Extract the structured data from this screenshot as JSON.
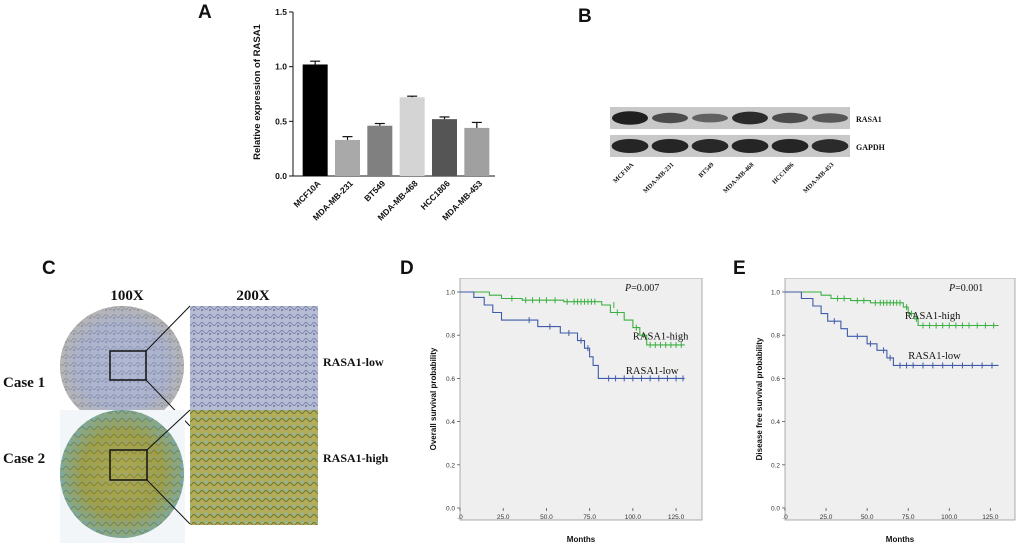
{
  "panels": {
    "a": {
      "letter": "A"
    },
    "b": {
      "letter": "B"
    },
    "c": {
      "letter": "C"
    },
    "d": {
      "letter": "D"
    },
    "e": {
      "letter": "E"
    }
  },
  "ihc": {
    "col_labels": [
      "100X",
      "200X"
    ],
    "row_labels": [
      "Case 1",
      "Case 2"
    ],
    "expression_labels": [
      "RASA1-low",
      "RASA1-high"
    ]
  },
  "blot": {
    "band_labels": [
      "RASA1",
      "GAPDH"
    ],
    "lanes": [
      "MCF10A",
      "MDA-MB-231",
      "BT549",
      "MDA-MB-468",
      "HCC1806",
      "MDA-MB-453"
    ],
    "rasa1_intensity": [
      0.95,
      0.55,
      0.35,
      0.85,
      0.55,
      0.45
    ],
    "gapdh_intensity": [
      0.9,
      0.9,
      0.88,
      0.9,
      0.9,
      0.85
    ]
  },
  "chart_data": [
    {
      "type": "bar",
      "panel": "A",
      "categories": [
        "MCF10A",
        "MDA-MB-231",
        "BT549",
        "MDA-MB-468",
        "HCC1806",
        "MDA-MB-453"
      ],
      "values": [
        1.02,
        0.33,
        0.46,
        0.72,
        0.52,
        0.44
      ],
      "errors": [
        0.03,
        0.03,
        0.02,
        0.01,
        0.02,
        0.05
      ],
      "colors": [
        "#000000",
        "#a9a9a9",
        "#808080",
        "#d4d4d4",
        "#555555",
        "#a0a0a0"
      ],
      "ylabel": "Relative expression of RASA1",
      "ylim": [
        0,
        1.5
      ],
      "yticks": [
        "0.0",
        "0.5",
        "1.0",
        "1.5"
      ]
    },
    {
      "type": "line",
      "panel": "D",
      "title": "",
      "xlabel": "Months",
      "ylabel": "Overall survival probability",
      "annotation_p": "=0.007",
      "annotation_p_letter": "P",
      "xlim": [
        0,
        140
      ],
      "ylim": [
        0,
        1.0
      ],
      "xticks": [
        ".0",
        "25.0",
        "50.0",
        "75.0",
        "100.0",
        "125.0"
      ],
      "yticks": [
        "0.0",
        "0.2",
        "0.4",
        "0.6",
        "0.8",
        "1.0"
      ],
      "series": [
        {
          "name": "RASA1-high",
          "color": "#3cb043",
          "steps": [
            [
              0,
              1.0
            ],
            [
              17,
              1.0
            ],
            [
              17,
              0.985
            ],
            [
              24,
              0.985
            ],
            [
              24,
              0.97
            ],
            [
              36,
              0.97
            ],
            [
              36,
              0.962
            ],
            [
              60,
              0.962
            ],
            [
              60,
              0.955
            ],
            [
              82,
              0.955
            ],
            [
              82,
              0.94
            ],
            [
              87,
              0.94
            ],
            [
              87,
              0.905
            ],
            [
              95,
              0.905
            ],
            [
              95,
              0.87
            ],
            [
              100,
              0.87
            ],
            [
              100,
              0.835
            ],
            [
              104,
              0.835
            ],
            [
              104,
              0.8
            ],
            [
              108,
              0.8
            ],
            [
              108,
              0.755
            ],
            [
              130,
              0.755
            ]
          ],
          "censors": [
            [
              30,
              0.97
            ],
            [
              38,
              0.962
            ],
            [
              42,
              0.962
            ],
            [
              46,
              0.962
            ],
            [
              50,
              0.962
            ],
            [
              55,
              0.962
            ],
            [
              62,
              0.955
            ],
            [
              66,
              0.955
            ],
            [
              68,
              0.955
            ],
            [
              70,
              0.955
            ],
            [
              72,
              0.955
            ],
            [
              74,
              0.955
            ],
            [
              76,
              0.955
            ],
            [
              78,
              0.955
            ],
            [
              89,
              0.94
            ],
            [
              91,
              0.905
            ],
            [
              102,
              0.835
            ],
            [
              106,
              0.8
            ],
            [
              110,
              0.755
            ],
            [
              113,
              0.755
            ],
            [
              116,
              0.755
            ],
            [
              119,
              0.755
            ],
            [
              122,
              0.755
            ],
            [
              125,
              0.755
            ],
            [
              128,
              0.755
            ]
          ]
        },
        {
          "name": "RASA1-low",
          "color": "#3f5ba9",
          "steps": [
            [
              0,
              1.0
            ],
            [
              8,
              1.0
            ],
            [
              8,
              0.975
            ],
            [
              14,
              0.975
            ],
            [
              14,
              0.94
            ],
            [
              19,
              0.94
            ],
            [
              19,
              0.905
            ],
            [
              24,
              0.905
            ],
            [
              24,
              0.87
            ],
            [
              45,
              0.87
            ],
            [
              45,
              0.84
            ],
            [
              58,
              0.84
            ],
            [
              58,
              0.81
            ],
            [
              68,
              0.81
            ],
            [
              68,
              0.775
            ],
            [
              72,
              0.775
            ],
            [
              72,
              0.74
            ],
            [
              75,
              0.74
            ],
            [
              75,
              0.7
            ],
            [
              77,
              0.7
            ],
            [
              77,
              0.66
            ],
            [
              80,
              0.66
            ],
            [
              80,
              0.6
            ],
            [
              130,
              0.6
            ]
          ],
          "censors": [
            [
              40,
              0.87
            ],
            [
              52,
              0.84
            ],
            [
              63,
              0.81
            ],
            [
              70,
              0.775
            ],
            [
              74,
              0.74
            ],
            [
              86,
              0.6
            ],
            [
              90,
              0.6
            ],
            [
              95,
              0.6
            ],
            [
              100,
              0.6
            ],
            [
              105,
              0.6
            ],
            [
              110,
              0.6
            ],
            [
              115,
              0.6
            ],
            [
              120,
              0.6
            ],
            [
              125,
              0.6
            ],
            [
              129,
              0.6
            ]
          ]
        }
      ]
    },
    {
      "type": "line",
      "panel": "E",
      "title": "",
      "xlabel": "Months",
      "ylabel": "Disease free survival probability",
      "annotation_p": "=0.001",
      "annotation_p_letter": "P",
      "xlim": [
        0,
        140
      ],
      "ylim": [
        0,
        1.0
      ],
      "xticks": [
        ".0",
        "25.0",
        "50.0",
        "75.0",
        "100.0",
        "125.0"
      ],
      "yticks": [
        "0.0",
        "0.2",
        "0.4",
        "0.6",
        "0.8",
        "1.0"
      ],
      "series": [
        {
          "name": "RASA1-high",
          "color": "#3cb043",
          "steps": [
            [
              0,
              1.0
            ],
            [
              22,
              1.0
            ],
            [
              22,
              0.985
            ],
            [
              28,
              0.985
            ],
            [
              28,
              0.97
            ],
            [
              40,
              0.97
            ],
            [
              40,
              0.96
            ],
            [
              52,
              0.96
            ],
            [
              52,
              0.95
            ],
            [
              72,
              0.95
            ],
            [
              72,
              0.93
            ],
            [
              75,
              0.93
            ],
            [
              75,
              0.9
            ],
            [
              79,
              0.9
            ],
            [
              79,
              0.875
            ],
            [
              81,
              0.875
            ],
            [
              81,
              0.845
            ],
            [
              130,
              0.845
            ]
          ],
          "censors": [
            [
              32,
              0.97
            ],
            [
              36,
              0.97
            ],
            [
              44,
              0.96
            ],
            [
              48,
              0.96
            ],
            [
              55,
              0.95
            ],
            [
              58,
              0.95
            ],
            [
              60,
              0.95
            ],
            [
              62,
              0.95
            ],
            [
              64,
              0.95
            ],
            [
              66,
              0.95
            ],
            [
              68,
              0.95
            ],
            [
              70,
              0.95
            ],
            [
              74,
              0.93
            ],
            [
              77,
              0.9
            ],
            [
              80,
              0.875
            ],
            [
              84,
              0.845
            ],
            [
              88,
              0.845
            ],
            [
              92,
              0.845
            ],
            [
              96,
              0.845
            ],
            [
              100,
              0.845
            ],
            [
              104,
              0.845
            ],
            [
              108,
              0.845
            ],
            [
              112,
              0.845
            ],
            [
              117,
              0.845
            ],
            [
              122,
              0.845
            ],
            [
              127,
              0.845
            ]
          ]
        },
        {
          "name": "RASA1-low",
          "color": "#3f5ba9",
          "steps": [
            [
              0,
              1.0
            ],
            [
              10,
              1.0
            ],
            [
              10,
              0.97
            ],
            [
              17,
              0.97
            ],
            [
              17,
              0.935
            ],
            [
              22,
              0.935
            ],
            [
              22,
              0.9
            ],
            [
              26,
              0.9
            ],
            [
              26,
              0.865
            ],
            [
              34,
              0.865
            ],
            [
              34,
              0.83
            ],
            [
              38,
              0.83
            ],
            [
              38,
              0.795
            ],
            [
              50,
              0.795
            ],
            [
              50,
              0.76
            ],
            [
              56,
              0.76
            ],
            [
              56,
              0.73
            ],
            [
              62,
              0.73
            ],
            [
              62,
              0.695
            ],
            [
              66,
              0.695
            ],
            [
              66,
              0.66
            ],
            [
              130,
              0.66
            ]
          ],
          "censors": [
            [
              30,
              0.865
            ],
            [
              44,
              0.795
            ],
            [
              52,
              0.76
            ],
            [
              60,
              0.73
            ],
            [
              64,
              0.695
            ],
            [
              70,
              0.66
            ],
            [
              74,
              0.66
            ],
            [
              78,
              0.66
            ],
            [
              84,
              0.66
            ],
            [
              90,
              0.66
            ],
            [
              96,
              0.66
            ],
            [
              102,
              0.66
            ],
            [
              108,
              0.66
            ],
            [
              114,
              0.66
            ],
            [
              120,
              0.66
            ],
            [
              126,
              0.66
            ]
          ]
        }
      ]
    }
  ]
}
